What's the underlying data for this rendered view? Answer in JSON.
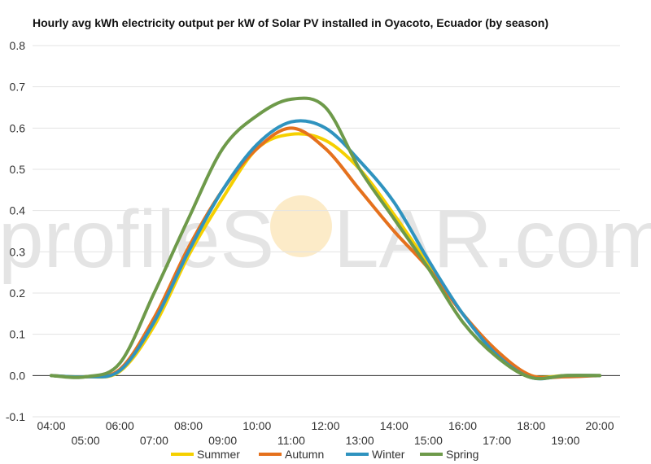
{
  "watermark": {
    "text_left": "profileS",
    "text_right": "LAR.com",
    "sun_color": "#f6c560"
  },
  "chart_data": {
    "type": "line",
    "title": "Hourly avg kWh electricity output per kW of Solar PV installed in Oyacoto, Ecuador (by season)",
    "xlabel": "",
    "ylabel": "",
    "x": [
      "04:00",
      "05:00",
      "06:00",
      "07:00",
      "08:00",
      "09:00",
      "10:00",
      "11:00",
      "12:00",
      "13:00",
      "14:00",
      "15:00",
      "16:00",
      "17:00",
      "18:00",
      "19:00",
      "20:00"
    ],
    "ylim": [
      -0.1,
      0.8
    ],
    "yticks": [
      "-0.1",
      "0.0",
      "0.1",
      "0.2",
      "0.3",
      "0.4",
      "0.5",
      "0.6",
      "0.7",
      "0.8"
    ],
    "grid": true,
    "legend_position": "bottom",
    "series": [
      {
        "name": "Summer",
        "color": "#f5d000",
        "values": [
          0.0,
          -0.003,
          0.01,
          0.12,
          0.29,
          0.43,
          0.55,
          0.585,
          0.57,
          0.5,
          0.39,
          0.27,
          0.15,
          0.06,
          0.0,
          0.0,
          0.0
        ]
      },
      {
        "name": "Autumn",
        "color": "#e5711d",
        "values": [
          0.0,
          -0.003,
          0.015,
          0.14,
          0.31,
          0.45,
          0.55,
          0.6,
          0.55,
          0.45,
          0.35,
          0.26,
          0.15,
          0.06,
          0.0,
          -0.003,
          0.0
        ]
      },
      {
        "name": "Winter",
        "color": "#2f93bf",
        "values": [
          0.0,
          -0.003,
          0.012,
          0.13,
          0.3,
          0.45,
          0.56,
          0.615,
          0.6,
          0.52,
          0.42,
          0.28,
          0.15,
          0.05,
          -0.005,
          0.0,
          0.0
        ]
      },
      {
        "name": "Spring",
        "color": "#6e9a4a",
        "values": [
          0.0,
          -0.003,
          0.03,
          0.2,
          0.38,
          0.55,
          0.63,
          0.67,
          0.65,
          0.5,
          0.38,
          0.26,
          0.13,
          0.045,
          -0.005,
          0.0,
          0.0
        ]
      }
    ]
  }
}
